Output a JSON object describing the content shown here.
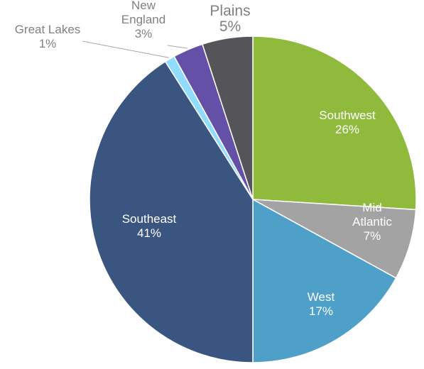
{
  "chart_data": {
    "type": "pie",
    "title": "",
    "start_angle_deg": 0,
    "direction": "clockwise",
    "slices": [
      {
        "label": "Southwest",
        "value": 26,
        "percent_label": "26%",
        "color": "#8fba3c",
        "label_lines": [
          "Southwest"
        ],
        "label_pos": "inside"
      },
      {
        "label": "Mid Atlantic",
        "value": 7,
        "percent_label": "7%",
        "color": "#a3a3a3",
        "label_lines": [
          "Mid",
          "Atlantic"
        ],
        "label_pos": "inside"
      },
      {
        "label": "West",
        "value": 17,
        "percent_label": "17%",
        "color": "#4ea0c8",
        "label_lines": [
          "West"
        ],
        "label_pos": "inside"
      },
      {
        "label": "Southeast",
        "value": 41,
        "percent_label": "41%",
        "color": "#3a5580",
        "label_lines": [
          "Southeast"
        ],
        "label_pos": "inside"
      },
      {
        "label": "Great Lakes",
        "value": 1,
        "percent_label": "1%",
        "color": "#8fdcff",
        "label_lines": [
          "Great Lakes"
        ],
        "label_pos": "outside"
      },
      {
        "label": "New England",
        "value": 3,
        "percent_label": "3%",
        "color": "#6550a8",
        "label_lines": [
          "New",
          "England"
        ],
        "label_pos": "outside"
      },
      {
        "label": "Plains",
        "value": 5,
        "percent_label": "5%",
        "color": "#555559",
        "label_lines": [
          "Plains"
        ],
        "label_pos": "outside"
      }
    ]
  }
}
